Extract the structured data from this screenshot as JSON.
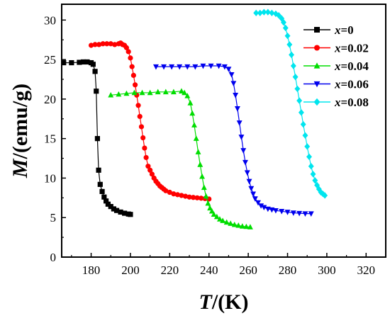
{
  "chart_data": {
    "type": "line",
    "xlabel": {
      "var": "T",
      "unit": "/(K)"
    },
    "ylabel": {
      "var": "M",
      "unit": "/(emu/g)"
    },
    "xlim": [
      165,
      330
    ],
    "ylim": [
      0,
      32
    ],
    "xticks": [
      180,
      200,
      220,
      240,
      260,
      280,
      300,
      320
    ],
    "yticks": [
      0,
      5,
      10,
      15,
      20,
      25,
      30
    ],
    "legend_position": "top-right",
    "grid": false,
    "series": [
      {
        "name": "x=0",
        "legend_var": "x",
        "legend_val": "=0",
        "color": "#000000",
        "marker": "square",
        "x": [
          166,
          170,
          174,
          176,
          178,
          180,
          181,
          182,
          182.6,
          183.2,
          183.8,
          184.6,
          185.6,
          186.6,
          187.6,
          188.6,
          190,
          191.5,
          193,
          195,
          197,
          199,
          200
        ],
        "y": [
          24.6,
          24.6,
          24.65,
          24.7,
          24.7,
          24.6,
          24.4,
          23.5,
          21,
          15,
          11,
          9.2,
          8.3,
          7.6,
          7.1,
          6.7,
          6.4,
          6.1,
          5.9,
          5.7,
          5.55,
          5.45,
          5.4
        ]
      },
      {
        "name": "x=0.02",
        "legend_var": "x",
        "legend_val": "=0.02",
        "color": "#ff0000",
        "marker": "circle",
        "x": [
          180,
          182,
          184,
          186,
          188,
          190,
          192,
          194,
          195,
          196,
          197,
          198,
          199,
          200,
          200.8,
          201.6,
          202.4,
          203.2,
          204,
          204.8,
          205.6,
          206.4,
          207.2,
          208,
          209,
          210,
          211,
          212,
          213,
          214,
          215,
          216,
          217,
          218,
          220,
          222,
          224,
          226,
          228,
          230,
          232,
          234,
          236,
          238,
          240
        ],
        "y": [
          26.8,
          26.9,
          26.9,
          27,
          27,
          27,
          26.9,
          27,
          27.1,
          26.9,
          26.8,
          26.5,
          26,
          25.2,
          24.1,
          23,
          21.8,
          20.5,
          19.2,
          17.8,
          16.5,
          15.1,
          13.8,
          12.6,
          11.5,
          11,
          10.5,
          10,
          9.6,
          9.3,
          9,
          8.8,
          8.6,
          8.4,
          8.2,
          8,
          7.9,
          7.8,
          7.7,
          7.6,
          7.55,
          7.5,
          7.45,
          7.4,
          7.35
        ]
      },
      {
        "name": "x=0.04",
        "legend_var": "x",
        "legend_val": "=0.04",
        "color": "#00dd00",
        "marker": "triangle-up",
        "x": [
          190,
          194,
          198,
          202,
          206,
          210,
          214,
          218,
          222,
          226,
          227.5,
          229,
          230.5,
          231.5,
          232.5,
          233.5,
          234.5,
          235.5,
          236.5,
          237.5,
          238.5,
          239.5,
          240.5,
          241.5,
          242.5,
          244,
          245.5,
          247,
          249,
          251,
          253,
          255,
          257,
          259,
          261
        ],
        "y": [
          20.5,
          20.6,
          20.7,
          20.8,
          20.8,
          20.8,
          20.9,
          20.9,
          20.9,
          21,
          20.8,
          20.4,
          19.5,
          18.2,
          16.7,
          15,
          13.3,
          11.7,
          10.2,
          8.8,
          7.7,
          6.8,
          6.2,
          5.8,
          5.4,
          5.1,
          4.8,
          4.6,
          4.4,
          4.25,
          4.1,
          4,
          3.9,
          3.85,
          3.8
        ]
      },
      {
        "name": "x=0.06",
        "legend_var": "x",
        "legend_val": "=0.06",
        "color": "#0000ee",
        "marker": "triangle-down",
        "x": [
          213,
          217,
          221,
          225,
          229,
          233,
          237,
          241,
          245,
          248,
          250,
          251.5,
          252.5,
          253.5,
          254.5,
          255.5,
          256.5,
          257.5,
          258.5,
          259.5,
          260.5,
          261.5,
          262.5,
          263.5,
          265,
          266.5,
          268,
          270,
          272,
          274,
          277,
          280,
          283,
          286,
          289,
          292
        ],
        "y": [
          24.1,
          24.1,
          24.1,
          24.1,
          24.1,
          24.1,
          24.2,
          24.2,
          24.2,
          24.1,
          23.8,
          23.1,
          22,
          20.5,
          18.8,
          17,
          15.2,
          13.5,
          12,
          10.7,
          9.6,
          8.7,
          8,
          7.4,
          6.9,
          6.5,
          6.3,
          6.1,
          6,
          5.9,
          5.8,
          5.7,
          5.6,
          5.55,
          5.5,
          5.5
        ]
      },
      {
        "name": "x=0.08",
        "legend_var": "x",
        "legend_val": "=0.08",
        "color": "#00e5ee",
        "marker": "diamond",
        "x": [
          264,
          266,
          268,
          270,
          272,
          274,
          275.5,
          277,
          278,
          279,
          280,
          281,
          282,
          283,
          284,
          285,
          286,
          287,
          288,
          289,
          290,
          291,
          292,
          293,
          294,
          295,
          296,
          297,
          298,
          299
        ],
        "y": [
          30.9,
          30.9,
          31,
          31,
          30.9,
          30.8,
          30.6,
          30.2,
          29.7,
          29,
          28,
          26.9,
          25.6,
          24.2,
          22.8,
          21.3,
          19.8,
          18.3,
          16.8,
          15.4,
          14,
          12.7,
          11.5,
          10.5,
          9.7,
          9.1,
          8.6,
          8.2,
          8,
          7.8
        ]
      }
    ]
  }
}
